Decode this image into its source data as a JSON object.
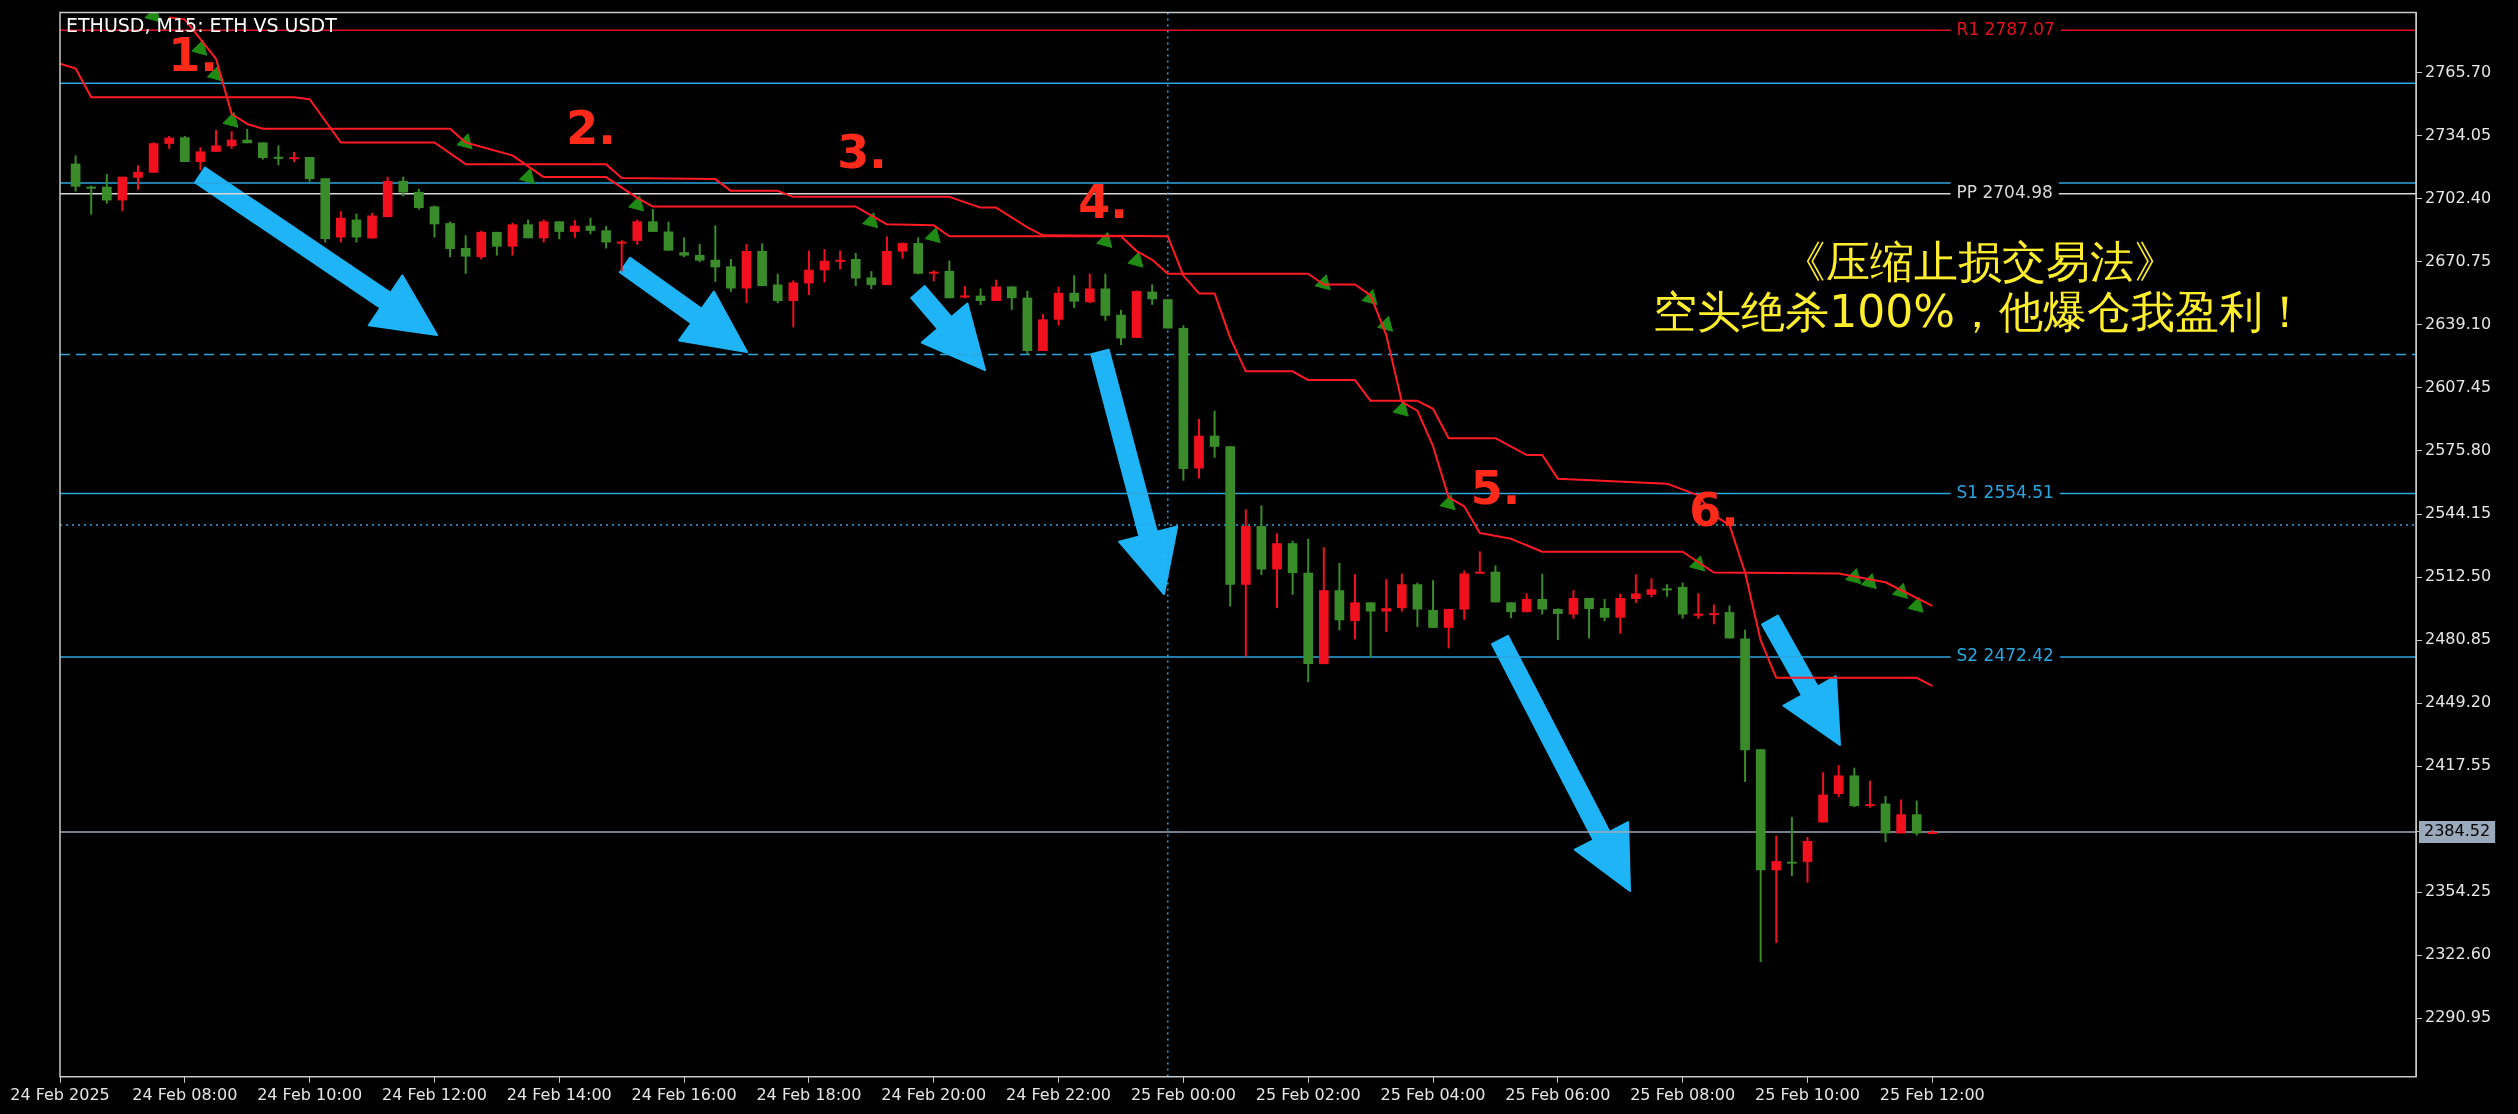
{
  "chart_data": {
    "type": "candlestick",
    "title": "ETHUSD, M15: ETH VS USDT",
    "legend": false,
    "grid": false,
    "xlim": [
      "2025-02-24T06:00",
      "2025-02-25T19:45"
    ],
    "xticks": [
      {
        "value": "2025-02-24T06:00",
        "label": "24 Feb 2025"
      },
      {
        "value": "2025-02-24T08:00",
        "label": "24 Feb 08:00"
      },
      {
        "value": "2025-02-24T10:00",
        "label": "24 Feb 10:00"
      },
      {
        "value": "2025-02-24T12:00",
        "label": "24 Feb 12:00"
      },
      {
        "value": "2025-02-24T14:00",
        "label": "24 Feb 14:00"
      },
      {
        "value": "2025-02-24T16:00",
        "label": "24 Feb 16:00"
      },
      {
        "value": "2025-02-24T18:00",
        "label": "24 Feb 18:00"
      },
      {
        "value": "2025-02-24T20:00",
        "label": "24 Feb 20:00"
      },
      {
        "value": "2025-02-24T22:00",
        "label": "24 Feb 22:00"
      },
      {
        "value": "2025-02-25T00:00",
        "label": "25 Feb 00:00"
      },
      {
        "value": "2025-02-25T02:00",
        "label": "25 Feb 02:00"
      },
      {
        "value": "2025-02-25T04:00",
        "label": "25 Feb 04:00"
      },
      {
        "value": "2025-02-25T06:00",
        "label": "25 Feb 06:00"
      },
      {
        "value": "2025-02-25T08:00",
        "label": "25 Feb 08:00"
      },
      {
        "value": "2025-02-25T10:00",
        "label": "25 Feb 10:00"
      },
      {
        "value": "2025-02-25T12:00",
        "label": "25 Feb 12:00"
      }
    ],
    "ylim": [
      2261.6,
      2795.9
    ],
    "yticks": [
      {
        "value": 2290.95,
        "label": "2290.95"
      },
      {
        "value": 2322.6,
        "label": "2322.60"
      },
      {
        "value": 2354.25,
        "label": "2354.25"
      },
      {
        "value": 2384.52,
        "label": "2384.52"
      },
      {
        "value": 2417.55,
        "label": "2417.55"
      },
      {
        "value": 2449.2,
        "label": "2449.20"
      },
      {
        "value": 2480.85,
        "label": "2480.85"
      },
      {
        "value": 2512.5,
        "label": "2512.50"
      },
      {
        "value": 2544.15,
        "label": "2544.15"
      },
      {
        "value": 2575.8,
        "label": "2575.80"
      },
      {
        "value": 2607.45,
        "label": "2607.45"
      },
      {
        "value": 2639.1,
        "label": "2639.10"
      },
      {
        "value": 2670.75,
        "label": "2670.75"
      },
      {
        "value": 2702.4,
        "label": "2702.40"
      },
      {
        "value": 2734.05,
        "label": "2734.05"
      },
      {
        "value": 2765.7,
        "label": "2765.70"
      }
    ],
    "ref_lines": [
      {
        "axis": "y",
        "value": 2787.07,
        "label": "R1 2787.07",
        "color": "#e0101e"
      },
      {
        "axis": "y",
        "value": 2704.98,
        "label": "PP 2704.98",
        "color": "#d8d8d8"
      },
      {
        "axis": "y",
        "value": 2554.51,
        "label": "S1 2554.51",
        "color": "#2aa6e0"
      },
      {
        "axis": "y",
        "value": 2472.42,
        "label": "S2 2472.42",
        "color": "#2aa6e0"
      },
      {
        "axis": "y",
        "value": 2760.4,
        "color": "#2aa6e0"
      },
      {
        "axis": "y",
        "value": 2710.4,
        "color": "#2aa6e0"
      },
      {
        "axis": "y",
        "value": 2624.2,
        "color": "#2aa6e0",
        "line_style": "dashed"
      },
      {
        "axis": "y",
        "value": 2538.6,
        "color": "#2aa6e0",
        "line_style": "dotted"
      },
      {
        "axis": "y",
        "value": 2384.52,
        "color": "#9aaabb"
      },
      {
        "axis": "x",
        "value": "2025-02-24T23:45",
        "color": "#2aa6e0",
        "line_style": "dotted"
      }
    ],
    "annotations": [
      "《压缩止损交易法》",
      "空头绝杀100%，他爆仓我盈利！",
      "1.",
      "2.",
      "3.",
      "4.",
      {
        "text": "5.",
        "x": "2025-02-25T05:00",
        "y": 2555
      },
      {
        "text": "6.",
        "x": "2025-02-25T08:30",
        "y": 2544
      }
    ],
    "series": [
      {
        "type": "line",
        "color": "#ff1a24",
        "x": [
          "2025-02-24T06:00",
          "2025-02-24T06:15",
          "2025-02-24T06:30",
          "2025-02-24T09:45",
          "2025-02-24T10:00",
          "2025-02-24T10:30",
          "2025-02-24T12:00",
          "2025-02-24T12:30",
          "2025-02-24T14:45",
          "2025-02-24T15:00",
          "2025-02-24T16:30",
          "2025-02-24T16:45",
          "2025-02-24T17:30",
          "2025-02-24T17:45",
          "2025-02-24T20:15",
          "2025-02-24T20:45",
          "2025-02-24T21:00",
          "2025-02-24T21:30",
          "2025-02-24T21:45",
          "2025-02-24T23:45",
          "2025-02-25T00:00",
          "2025-02-25T00:15",
          "2025-02-25T00:30",
          "2025-02-25T00:45",
          "2025-02-25T01:00",
          "2025-02-25T01:45",
          "2025-02-25T02:00",
          "2025-02-25T02:45",
          "2025-02-25T03:00",
          "2025-02-25T03:45",
          "2025-02-25T04:00",
          "2025-02-25T04:15",
          "2025-02-25T05:00",
          "2025-02-25T05:30",
          "2025-02-25T05:45",
          "2025-02-25T06:00",
          "2025-02-25T07:45",
          "2025-02-25T08:15",
          "2025-02-25T08:30",
          "2025-02-25T08:45",
          "2025-02-25T09:00",
          "2025-02-25T09:15",
          "2025-02-25T09:30",
          "2025-02-25T11:45",
          "2025-02-25T12:00"
        ],
        "values": [
          2770.3,
          2767.8,
          2753.4,
          2753.4,
          2752.4,
          2730.7,
          2730.7,
          2719.8,
          2719.8,
          2712.8,
          2712.3,
          2706.4,
          2706.4,
          2703.4,
          2703.4,
          2698,
          2698,
          2688.1,
          2684.1,
          2683.6,
          2663.8,
          2654.9,
          2654.9,
          2632.6,
          2615.8,
          2615.8,
          2611.4,
          2611.4,
          2601,
          2601,
          2597,
          2582.2,
          2582.2,
          2573.8,
          2573.8,
          2561.9,
          2559.4,
          2553.5,
          2543.6,
          2538.6,
          2514.8,
          2480.7,
          2461.9,
          2461.9,
          2457.9
        ]
      },
      {
        "type": "line",
        "color": "#ff1a24",
        "x": [
          "2025-02-24T07:45",
          "2025-02-24T08:00",
          "2025-02-24T08:30",
          "2025-02-24T08:45",
          "2025-02-24T09:00",
          "2025-02-24T09:15",
          "2025-02-24T12:15",
          "2025-02-24T12:30",
          "2025-02-24T13:15",
          "2025-02-24T13:45",
          "2025-02-24T14:45",
          "2025-02-24T15:15",
          "2025-02-24T15:30",
          "2025-02-24T18:45",
          "2025-02-24T19:15",
          "2025-02-24T20:00",
          "2025-02-24T20:15",
          "2025-02-24T23:00",
          "2025-02-24T23:15",
          "2025-02-24T23:30",
          "2025-02-24T23:45",
          "2025-02-25T02:00",
          "2025-02-25T02:15",
          "2025-02-25T02:45",
          "2025-02-25T03:00",
          "2025-02-25T03:15",
          "2025-02-25T03:30",
          "2025-02-25T03:45",
          "2025-02-25T04:00",
          "2025-02-25T04:15",
          "2025-02-25T04:30",
          "2025-02-25T04:45",
          "2025-02-25T05:15",
          "2025-02-25T05:45",
          "2025-02-25T08:00",
          "2025-02-25T08:30",
          "2025-02-25T10:30",
          "2025-02-25T11:15",
          "2025-02-25T12:00"
        ],
        "values": [
          2793.5,
          2792.5,
          2772.7,
          2745,
          2740,
          2737.6,
          2737.6,
          2730.7,
          2724.2,
          2713.3,
          2713.3,
          2702.9,
          2698.5,
          2698.5,
          2689.6,
          2689.1,
          2683.6,
          2683.6,
          2676.2,
          2671.8,
          2664.8,
          2664.8,
          2659.4,
          2659.4,
          2653.9,
          2634.1,
          2600.5,
          2596,
          2578.2,
          2552.5,
          2548,
          2534.6,
          2531.7,
          2525.2,
          2525.2,
          2514.8,
          2514.3,
          2509.9,
          2498
        ]
      },
      {
        "type": "scatter",
        "marker": "triangle",
        "color": "#1f8a14",
        "x": [
          "2025-02-24T07:30",
          "2025-02-24T08:15",
          "2025-02-24T08:30",
          "2025-02-24T08:45",
          "2025-02-24T12:30",
          "2025-02-24T13:30",
          "2025-02-24T15:15",
          "2025-02-24T19:00",
          "2025-02-24T20:00",
          "2025-02-24T22:45",
          "2025-02-24T23:15",
          "2025-02-25T02:15",
          "2025-02-25T03:00",
          "2025-02-25T03:15",
          "2025-02-25T03:30",
          "2025-02-25T04:15",
          "2025-02-25T08:15",
          "2025-02-25T10:45",
          "2025-02-25T11:00",
          "2025-02-25T11:30",
          "2025-02-25T11:45"
        ],
        "values": [
          2794.5,
          2777.7,
          2764.8,
          2741.5,
          2730.7,
          2713.3,
          2699.5,
          2691.1,
          2683.6,
          2681.2,
          2671.3,
          2659.9,
          2652.5,
          2639.1,
          2596.5,
          2549.5,
          2518.8,
          2512.4,
          2509.9,
          2505,
          2498
        ]
      },
      {
        "color": "#f0101e",
        "x": [
          "2025-02-24T07:00",
          "2025-02-24T07:15",
          "2025-02-24T07:30",
          "2025-02-24T07:45",
          "2025-02-24T08:15",
          "2025-02-24T08:30",
          "2025-02-24T08:45",
          "2025-02-24T09:45",
          "2025-02-24T10:30",
          "2025-02-24T11:00",
          "2025-02-24T11:15",
          "2025-02-24T12:45",
          "2025-02-24T13:15",
          "2025-02-24T13:45",
          "2025-02-24T14:15",
          "2025-02-24T15:00",
          "2025-02-24T15:15",
          "2025-02-24T17:00",
          "2025-02-24T17:45",
          "2025-02-24T18:00",
          "2025-02-24T18:15",
          "2025-02-24T18:30",
          "2025-02-24T19:15",
          "2025-02-24T19:30",
          "2025-02-24T20:00",
          "2025-02-24T20:30",
          "2025-02-24T21:00",
          "2025-02-24T21:45",
          "2025-02-24T22:00",
          "2025-02-24T22:30",
          "2025-02-24T23:15",
          "2025-02-25T00:15",
          "2025-02-25T01:00",
          "2025-02-25T01:30",
          "2025-02-25T02:15",
          "2025-02-25T02:45",
          "2025-02-25T03:15",
          "2025-02-25T03:30",
          "2025-02-25T04:15",
          "2025-02-25T04:30",
          "2025-02-25T04:45",
          "2025-02-25T05:30",
          "2025-02-25T06:15",
          "2025-02-25T07:00",
          "2025-02-25T07:15",
          "2025-02-25T07:30",
          "2025-02-25T08:15",
          "2025-02-25T08:30",
          "2025-02-25T09:30",
          "2025-02-25T10:00",
          "2025-02-25T10:15",
          "2025-02-25T10:30",
          "2025-02-25T11:00",
          "2025-02-25T11:30",
          "2025-02-25T12:00"
        ],
        "ohlc": [
          [
            2701.6,
            2713.5,
            2696.2,
            2713.5
          ],
          [
            2713,
            2719.3,
            2706.9,
            2716
          ],
          [
            2715.5,
            2730.8,
            2715.5,
            2730.3
          ],
          [
            2730,
            2734,
            2727.5,
            2733.1
          ],
          [
            2720.9,
            2728.3,
            2716.8,
            2726.2
          ],
          [
            2726,
            2736.9,
            2725.9,
            2729.2
          ],
          [
            2728.8,
            2736.3,
            2727.5,
            2732.1
          ],
          [
            2723.1,
            2725.9,
            2720.9,
            2723.3
          ],
          [
            2683,
            2696.2,
            2680.5,
            2692.9
          ],
          [
            2682.5,
            2695.4,
            2682.5,
            2694
          ],
          [
            2693.2,
            2713.5,
            2693.2,
            2711.4
          ],
          [
            2673.1,
            2686.4,
            2672,
            2685.8
          ],
          [
            2678.4,
            2690.4,
            2673.9,
            2689.6
          ],
          [
            2682.6,
            2692,
            2680.5,
            2691.1
          ],
          [
            2685.8,
            2691.7,
            2682.8,
            2688.9
          ],
          [
            2680.5,
            2681.6,
            2666,
            2680.9
          ],
          [
            2681.3,
            2692,
            2679.3,
            2691.1
          ],
          [
            2657.4,
            2679.7,
            2650,
            2676.2
          ],
          [
            2651.1,
            2661.5,
            2637.9,
            2660.4
          ],
          [
            2659.9,
            2676.4,
            2654.1,
            2666.8
          ],
          [
            2666.5,
            2677.2,
            2660.4,
            2671.3
          ],
          [
            2671.6,
            2676.4,
            2667,
            2671.8
          ],
          [
            2659.1,
            2683.5,
            2659.1,
            2676.2
          ],
          [
            2675.9,
            2680.5,
            2672.3,
            2680.2
          ],
          [
            2665.5,
            2666.5,
            2661,
            2665.8
          ],
          [
            2653.6,
            2658.6,
            2652.5,
            2653.9
          ],
          [
            2651.1,
            2661.8,
            2651.1,
            2658.4
          ],
          [
            2626,
            2644.5,
            2626,
            2641.9
          ],
          [
            2641.7,
            2658.2,
            2638.8,
            2655.2
          ],
          [
            2650.5,
            2664.8,
            2650,
            2657.4
          ],
          [
            2632.6,
            2656.4,
            2632.6,
            2656.1
          ],
          [
            2567,
            2591.9,
            2562,
            2583.5
          ],
          [
            2508.6,
            2546.5,
            2472.6,
            2538.1
          ],
          [
            2516.3,
            2534.5,
            2496.9,
            2529.5
          ],
          [
            2468.8,
            2527.5,
            2468.8,
            2505.9
          ],
          [
            2490.4,
            2513.9,
            2481.2,
            2499.8
          ],
          [
            2495.2,
            2511.4,
            2485,
            2496.9
          ],
          [
            2496.9,
            2514.2,
            2495.2,
            2508.9
          ],
          [
            2487,
            2496.5,
            2476.7,
            2496.5
          ],
          [
            2496.2,
            2515.8,
            2491.1,
            2514.3
          ],
          [
            2514.2,
            2525.4,
            2514.2,
            2515.2
          ],
          [
            2494.9,
            2504.3,
            2494.9,
            2501.5
          ],
          [
            2493.7,
            2505.9,
            2491.6,
            2502
          ],
          [
            2492.1,
            2504.3,
            2484.1,
            2502
          ],
          [
            2501.5,
            2513.9,
            2499.5,
            2504.3
          ],
          [
            2503.6,
            2511.9,
            2502.3,
            2506.4
          ],
          [
            2493.9,
            2504.4,
            2491.6,
            2494.1
          ],
          [
            2494.2,
            2498.7,
            2488.8,
            2494.4
          ],
          [
            2365.3,
            2382.7,
            2328.7,
            2369.9
          ],
          [
            2369.5,
            2382,
            2359.1,
            2380
          ],
          [
            2389.3,
            2414.5,
            2389.3,
            2403.3
          ],
          [
            2403.6,
            2418.1,
            2402,
            2412.9
          ],
          [
            2398.2,
            2410.2,
            2396.7,
            2398.5
          ],
          [
            2383.8,
            2400.8,
            2383.8,
            2393.4
          ],
          [
            2383.6,
            2385.6,
            2383.4,
            2384.52
          ]
        ]
      },
      {
        "color": "#3a8c2a",
        "x": [
          "2025-02-24T06:15",
          "2025-02-24T06:30",
          "2025-02-24T06:45",
          "2025-02-24T08:00",
          "2025-02-24T09:00",
          "2025-02-24T09:15",
          "2025-02-24T09:30",
          "2025-02-24T10:00",
          "2025-02-24T10:15",
          "2025-02-24T10:45",
          "2025-02-24T11:30",
          "2025-02-24T11:45",
          "2025-02-24T12:00",
          "2025-02-24T12:15",
          "2025-02-24T12:30",
          "2025-02-24T13:00",
          "2025-02-24T13:30",
          "2025-02-24T14:00",
          "2025-02-24T14:30",
          "2025-02-24T14:45",
          "2025-02-24T15:30",
          "2025-02-24T15:45",
          "2025-02-24T16:00",
          "2025-02-24T16:15",
          "2025-02-24T16:30",
          "2025-02-24T16:45",
          "2025-02-24T17:15",
          "2025-02-24T17:30",
          "2025-02-24T18:45",
          "2025-02-24T19:00",
          "2025-02-24T19:45",
          "2025-02-24T20:15",
          "2025-02-24T20:45",
          "2025-02-24T21:15",
          "2025-02-24T21:30",
          "2025-02-24T22:15",
          "2025-02-24T22:45",
          "2025-02-24T23:00",
          "2025-02-24T23:30",
          "2025-02-24T23:45",
          "2025-02-25T00:00",
          "2025-02-25T00:30",
          "2025-02-25T00:45",
          "2025-02-25T01:15",
          "2025-02-25T01:45",
          "2025-02-25T02:00",
          "2025-02-25T02:30",
          "2025-02-25T03:00",
          "2025-02-25T03:45",
          "2025-02-25T04:00",
          "2025-02-25T05:00",
          "2025-02-25T05:15",
          "2025-02-25T05:45",
          "2025-02-25T06:00",
          "2025-02-25T06:30",
          "2025-02-25T06:45",
          "2025-02-25T07:45",
          "2025-02-25T08:00",
          "2025-02-25T08:45",
          "2025-02-25T09:00",
          "2025-02-25T09:15",
          "2025-02-25T09:45",
          "2025-02-25T10:45",
          "2025-02-25T11:15",
          "2025-02-25T11:45"
        ],
        "ohlc": [
          [
            2720.1,
            2724.2,
            2706.1,
            2708.5
          ],
          [
            2708.5,
            2709,
            2694.5,
            2708
          ],
          [
            2708.5,
            2714.8,
            2700,
            2701.6
          ],
          [
            2733.3,
            2734,
            2720.9,
            2720.9
          ],
          [
            2732.1,
            2737.4,
            2730.3,
            2730.3
          ],
          [
            2730.7,
            2730.7,
            2722.1,
            2722.9
          ],
          [
            2723.5,
            2729.2,
            2719.3,
            2723.3
          ],
          [
            2723.4,
            2723.4,
            2711,
            2712.3
          ],
          [
            2712.7,
            2712.7,
            2680.5,
            2682.2
          ],
          [
            2692,
            2695,
            2680.5,
            2683
          ],
          [
            2711.4,
            2713.5,
            2703.6,
            2705.6
          ],
          [
            2705.9,
            2707.4,
            2697,
            2697.8
          ],
          [
            2698.6,
            2699,
            2683,
            2689.6
          ],
          [
            2690.2,
            2691,
            2673.1,
            2677.2
          ],
          [
            2677.7,
            2684.1,
            2664.8,
            2673.4
          ],
          [
            2685.8,
            2685.8,
            2673.9,
            2678.4
          ],
          [
            2689.6,
            2692,
            2682.6,
            2682.6
          ],
          [
            2691.1,
            2691.1,
            2682.1,
            2685.8
          ],
          [
            2688.9,
            2692.9,
            2684.6,
            2686.3
          ],
          [
            2686.6,
            2688.8,
            2677.5,
            2680.5
          ],
          [
            2691.1,
            2697.3,
            2685.8,
            2685.8
          ],
          [
            2686,
            2690.9,
            2676.4,
            2676.4
          ],
          [
            2675.6,
            2683,
            2673.1,
            2673.9
          ],
          [
            2674.2,
            2679.7,
            2670.6,
            2671.4
          ],
          [
            2671.8,
            2689.1,
            2660.7,
            2668
          ],
          [
            2668.5,
            2672.2,
            2655.7,
            2657.4
          ],
          [
            2676.2,
            2680,
            2658.6,
            2658.6
          ],
          [
            2659.4,
            2664.8,
            2650,
            2651.1
          ],
          [
            2672.2,
            2675.2,
            2658.6,
            2662.4
          ],
          [
            2662.9,
            2666.1,
            2657.1,
            2659.1
          ],
          [
            2680.2,
            2683,
            2664.5,
            2664.8
          ],
          [
            2666.2,
            2671.4,
            2652.5,
            2652.5
          ],
          [
            2653.8,
            2657.4,
            2649.1,
            2651.1
          ],
          [
            2658.4,
            2658.4,
            2646.7,
            2652.5
          ],
          [
            2652.8,
            2656.2,
            2624.4,
            2626
          ],
          [
            2655.2,
            2664,
            2647.5,
            2650.8
          ],
          [
            2657.4,
            2664.8,
            2641.2,
            2643.7
          ],
          [
            2644.2,
            2646.7,
            2629,
            2632.3
          ],
          [
            2655.8,
            2659.4,
            2649.2,
            2652
          ],
          [
            2652,
            2652,
            2637.3,
            2637.3
          ],
          [
            2637.6,
            2638.9,
            2560.9,
            2566.7
          ],
          [
            2583.5,
            2596,
            2572.4,
            2577.9
          ],
          [
            2578.2,
            2578.2,
            2497.7,
            2508.6
          ],
          [
            2538.1,
            2548.5,
            2513.5,
            2516.3
          ],
          [
            2529.5,
            2530.7,
            2503.6,
            2514.5
          ],
          [
            2514.7,
            2531.7,
            2459.7,
            2468.8
          ],
          [
            2505.9,
            2519.6,
            2485.8,
            2490.8
          ],
          [
            2499.8,
            2499.8,
            2472.1,
            2495.2
          ],
          [
            2508.9,
            2509.7,
            2487.5,
            2496.2
          ],
          [
            2496,
            2510.9,
            2487,
            2487
          ],
          [
            2515.2,
            2518.3,
            2499.8,
            2499.8
          ],
          [
            2499.8,
            2499.8,
            2491.9,
            2494.9
          ],
          [
            2501.5,
            2514.2,
            2493.7,
            2496.2
          ],
          [
            2496.5,
            2496.8,
            2480.9,
            2494
          ],
          [
            2502,
            2502,
            2481.7,
            2496.5
          ],
          [
            2497,
            2501.5,
            2490.3,
            2492.1
          ],
          [
            2506.8,
            2508.9,
            2502.6,
            2506.6
          ],
          [
            2507.6,
            2509.7,
            2491.6,
            2493.7
          ],
          [
            2494.9,
            2498.2,
            2481.7,
            2481.7
          ],
          [
            2481.7,
            2486.1,
            2409.6,
            2425.6
          ],
          [
            2426.1,
            2426.1,
            2319.2,
            2365.3
          ],
          [
            2369.6,
            2392.1,
            2362.4,
            2369.4
          ],
          [
            2412.9,
            2416.8,
            2397,
            2397.5
          ],
          [
            2398.8,
            2402.5,
            2379.4,
            2383.8
          ],
          [
            2393.4,
            2400.3,
            2382.7,
            2383.8
          ]
        ]
      }
    ]
  }
}
